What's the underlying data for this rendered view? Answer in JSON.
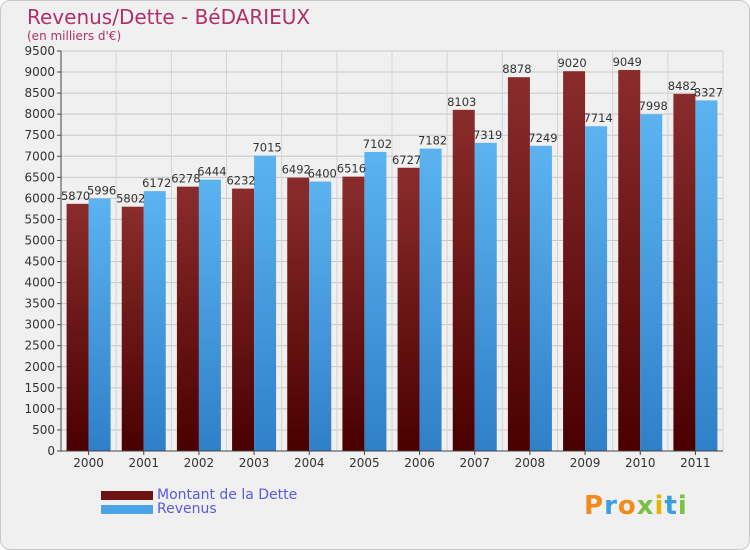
{
  "title": "Revenus/Dette - BéDARIEUX",
  "subtitle": "(en milliers d'€)",
  "logo_text": "Proxiti",
  "colors": {
    "dette": "#6e1414",
    "revenus": "#4aa3e6",
    "title": "#b0306a",
    "legend_text": "#5a5adc"
  },
  "chart_data": {
    "type": "bar",
    "categories": [
      "2000",
      "2001",
      "2002",
      "2003",
      "2004",
      "2005",
      "2006",
      "2007",
      "2008",
      "2009",
      "2010",
      "2011"
    ],
    "series": [
      {
        "name": "Montant de la Dette",
        "values": [
          5870,
          5802,
          6278,
          6232,
          6492,
          6516,
          6727,
          8103,
          8878,
          9020,
          9049,
          8482
        ]
      },
      {
        "name": "Revenus",
        "values": [
          5996,
          6172,
          6444,
          7015,
          6400,
          7102,
          7182,
          7319,
          7249,
          7714,
          7998,
          8327
        ]
      }
    ],
    "ylim": [
      0,
      9500
    ],
    "ytick_step": 500,
    "grid": true,
    "legend_position": "bottom-left"
  }
}
